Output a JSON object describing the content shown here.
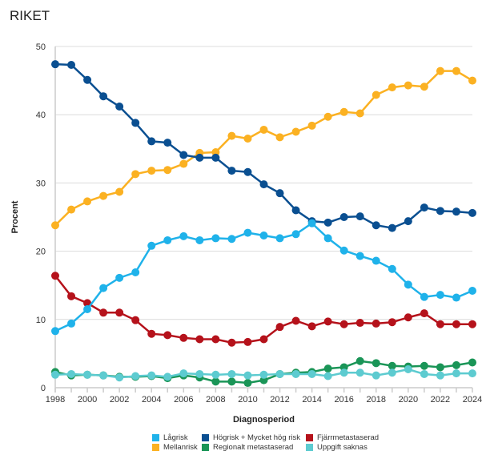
{
  "chart_data": {
    "type": "line",
    "title": "RIKET",
    "xlabel": "Diagnosperiod",
    "ylabel": "Procent",
    "xlim": [
      1998,
      2024
    ],
    "ylim": [
      0,
      50
    ],
    "yticks": [
      0,
      10,
      20,
      30,
      40,
      50
    ],
    "xticks": [
      1998,
      2000,
      2002,
      2004,
      2006,
      2008,
      2010,
      2012,
      2014,
      2016,
      2018,
      2020,
      2022,
      2024
    ],
    "grid": "horizontal",
    "legend_position": "bottom",
    "x": [
      1998,
      1999,
      2000,
      2001,
      2002,
      2003,
      2004,
      2005,
      2006,
      2007,
      2008,
      2009,
      2010,
      2011,
      2012,
      2013,
      2014,
      2015,
      2016,
      2017,
      2018,
      2019,
      2020,
      2021,
      2022,
      2023,
      2024
    ],
    "series": [
      {
        "name": "Lågrisk",
        "color": "#1fb2ea",
        "values": [
          8.3,
          9.4,
          11.5,
          14.6,
          16.1,
          16.9,
          20.8,
          21.6,
          22.2,
          21.6,
          21.9,
          21.8,
          22.7,
          22.3,
          21.9,
          22.5,
          24.1,
          21.9,
          20.1,
          19.3,
          18.6,
          17.4,
          15.1,
          13.3,
          13.6,
          13.2,
          14.2
        ]
      },
      {
        "name": "Mellanrisk",
        "color": "#fbb122",
        "values": [
          23.8,
          26.1,
          27.3,
          28.1,
          28.7,
          31.3,
          31.8,
          31.9,
          32.8,
          34.4,
          34.5,
          36.9,
          36.5,
          37.8,
          36.7,
          37.5,
          38.4,
          39.7,
          40.4,
          40.2,
          42.9,
          44.0,
          44.3,
          44.1,
          46.4,
          46.4,
          45.0
        ]
      },
      {
        "name": "Högrisk + Mycket hög risk",
        "color": "#0a4f91",
        "values": [
          47.4,
          47.3,
          45.1,
          42.7,
          41.2,
          38.8,
          36.1,
          35.9,
          34.1,
          33.7,
          33.7,
          31.8,
          31.6,
          29.8,
          28.5,
          26.0,
          24.4,
          24.2,
          25.0,
          25.1,
          23.8,
          23.4,
          24.4,
          26.4,
          25.9,
          25.8,
          25.6
        ]
      },
      {
        "name": "Regionalt metastaserad",
        "color": "#1a9557",
        "values": [
          2.3,
          1.8,
          1.9,
          1.8,
          1.6,
          1.6,
          1.7,
          1.4,
          1.8,
          1.5,
          0.9,
          0.9,
          0.7,
          1.1,
          2.0,
          2.2,
          2.3,
          2.8,
          3.0,
          3.9,
          3.6,
          3.2,
          3.1,
          3.2,
          3.0,
          3.3,
          3.7
        ]
      },
      {
        "name": "Fjärrmetastaserad",
        "color": "#b5121b",
        "values": [
          16.4,
          13.4,
          12.4,
          11.0,
          11.0,
          9.9,
          7.9,
          7.7,
          7.3,
          7.1,
          7.1,
          6.6,
          6.7,
          7.1,
          8.9,
          9.8,
          9.0,
          9.7,
          9.3,
          9.5,
          9.4,
          9.6,
          10.3,
          10.9,
          9.3,
          9.3,
          9.3
        ]
      },
      {
        "name": "Uppgift saknas",
        "color": "#5dcbd0",
        "values": [
          1.9,
          2.0,
          1.9,
          1.8,
          1.5,
          1.7,
          1.8,
          1.6,
          2.1,
          2.0,
          1.9,
          2.0,
          1.8,
          1.9,
          2.0,
          2.0,
          2.0,
          1.7,
          2.2,
          2.2,
          1.8,
          2.2,
          2.7,
          2.0,
          1.8,
          2.1,
          2.1
        ]
      }
    ],
    "legend_order": [
      0,
      2,
      4,
      1,
      3,
      5
    ]
  }
}
